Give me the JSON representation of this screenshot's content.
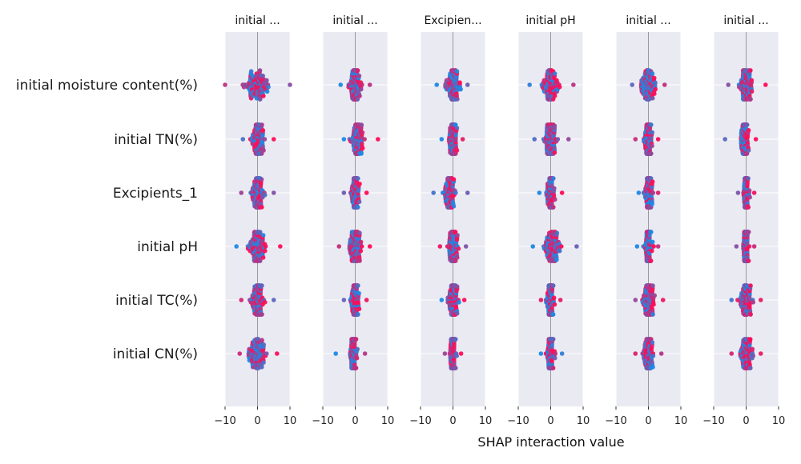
{
  "chart_data": {
    "type": "scatter",
    "subtype": "shap-interaction-beeswarm-grid",
    "xlabel": "SHAP interaction value",
    "xlim": [
      -10,
      10
    ],
    "xticks": [
      -10,
      0,
      10
    ],
    "xtick_labels": [
      "−10",
      "0",
      "10"
    ],
    "grid": true,
    "background_color": "#EAEAF2",
    "point_color_low": "#1E88E5",
    "point_color_high": "#FF0D57",
    "point_color_mid": "#8A3FC8",
    "column_titles": [
      "initial ...",
      "initial ...",
      "Excipien...",
      "initial pH",
      "initial ...",
      "initial ..."
    ],
    "row_labels": [
      "initial moisture content(%)",
      "initial TN(%)",
      "Excipients_1",
      "initial pH",
      "initial TC(%)",
      "initial CN(%)"
    ],
    "cells": [
      [
        {
          "min": -10,
          "max": 10,
          "center": 0,
          "spread": 5.5
        },
        {
          "min": -4.5,
          "max": 4.5,
          "center": 0,
          "spread": 3
        },
        {
          "min": -5,
          "max": 4.5,
          "center": 0,
          "spread": 3
        },
        {
          "min": -6.5,
          "max": 7,
          "center": 0,
          "spread": 4
        },
        {
          "min": -5,
          "max": 5,
          "center": 0,
          "spread": 3.5
        },
        {
          "min": -5.5,
          "max": 6,
          "center": 0,
          "spread": 3.5
        }
      ],
      [
        {
          "min": -4.5,
          "max": 5,
          "center": 0,
          "spread": 3
        },
        {
          "min": -3.5,
          "max": 7,
          "center": 0.5,
          "spread": 3
        },
        {
          "min": -3.5,
          "max": 3,
          "center": 0,
          "spread": 2
        },
        {
          "min": -5,
          "max": 5.5,
          "center": 0,
          "spread": 3
        },
        {
          "min": -4,
          "max": 3,
          "center": 0,
          "spread": 2
        },
        {
          "min": -6.5,
          "max": 3,
          "center": -0.5,
          "spread": 2
        }
      ],
      [
        {
          "min": -5,
          "max": 5,
          "center": 0,
          "spread": 3
        },
        {
          "min": -3.5,
          "max": 3.5,
          "center": 0,
          "spread": 2
        },
        {
          "min": -6,
          "max": 4.5,
          "center": -1,
          "spread": 3
        },
        {
          "min": -3.5,
          "max": 3.5,
          "center": 0,
          "spread": 2
        },
        {
          "min": -3,
          "max": 3,
          "center": 0,
          "spread": 2
        },
        {
          "min": -2.5,
          "max": 2.5,
          "center": 0,
          "spread": 1.5
        }
      ],
      [
        {
          "min": -6.5,
          "max": 7,
          "center": 0,
          "spread": 4
        },
        {
          "min": -5,
          "max": 4.5,
          "center": 0,
          "spread": 3
        },
        {
          "min": -4,
          "max": 4,
          "center": 0,
          "spread": 2.5
        },
        {
          "min": -5.5,
          "max": 8,
          "center": 0.5,
          "spread": 4
        },
        {
          "min": -3.5,
          "max": 3,
          "center": 0,
          "spread": 2
        },
        {
          "min": -3,
          "max": 2.5,
          "center": 0,
          "spread": 1.5
        }
      ],
      [
        {
          "min": -5,
          "max": 5,
          "center": 0,
          "spread": 3
        },
        {
          "min": -3.5,
          "max": 3.5,
          "center": 0,
          "spread": 2
        },
        {
          "min": -3.5,
          "max": 3.5,
          "center": 0,
          "spread": 2.5
        },
        {
          "min": -3,
          "max": 3,
          "center": 0,
          "spread": 2
        },
        {
          "min": -4,
          "max": 4.5,
          "center": 0,
          "spread": 3
        },
        {
          "min": -4.5,
          "max": 4.5,
          "center": 0,
          "spread": 3
        }
      ],
      [
        {
          "min": -5.5,
          "max": 6,
          "center": 0,
          "spread": 4
        },
        {
          "min": -6,
          "max": 3,
          "center": -0.5,
          "spread": 2
        },
        {
          "min": -2.5,
          "max": 2.5,
          "center": 0,
          "spread": 1.5
        },
        {
          "min": -3,
          "max": 3.5,
          "center": 0,
          "spread": 2
        },
        {
          "min": -4,
          "max": 4,
          "center": 0,
          "spread": 2.5
        },
        {
          "min": -4.5,
          "max": 4.5,
          "center": 0,
          "spread": 3
        }
      ]
    ]
  }
}
